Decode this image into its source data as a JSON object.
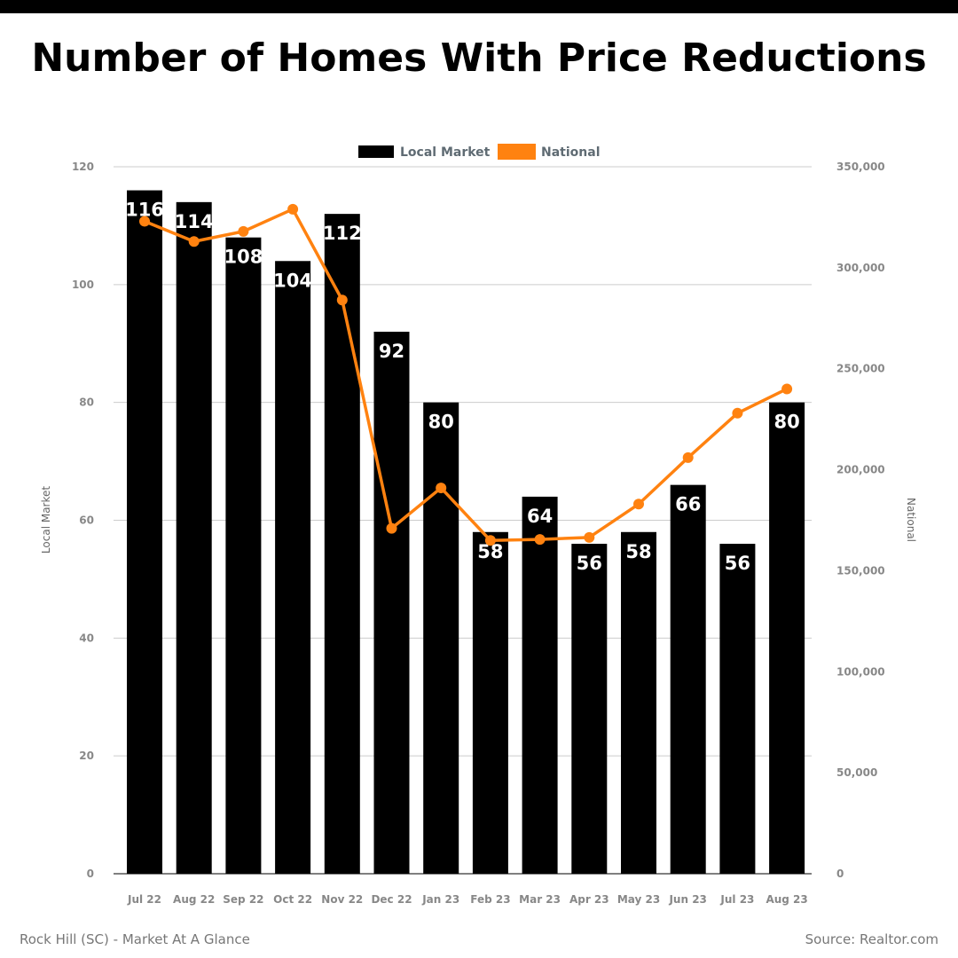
{
  "page": {
    "title": "Number of Homes With Price Reductions",
    "footer_left": "Rock Hill (SC) - Market At A Glance",
    "footer_right": "Source: Realtor.com"
  },
  "colors": {
    "bar": "#000000",
    "line": "#ff8210",
    "grid": "#cccccc",
    "tick": "#888888",
    "legend_text": "#5f6b73"
  },
  "chart_data": {
    "type": "bar",
    "categories": [
      "Jul 22",
      "Aug 22",
      "Sep 22",
      "Oct 22",
      "Nov 22",
      "Dec 22",
      "Jan 23",
      "Feb 23",
      "Mar 23",
      "Apr 23",
      "May 23",
      "Jun 23",
      "Jul 23",
      "Aug 23"
    ],
    "series": [
      {
        "name": "Local Market",
        "type": "bar",
        "axis": "left",
        "values": [
          116,
          114,
          108,
          104,
          112,
          92,
          80,
          58,
          64,
          56,
          58,
          66,
          56,
          80
        ]
      },
      {
        "name": "National",
        "type": "line",
        "axis": "right",
        "values": [
          323000,
          313000,
          318000,
          329000,
          284000,
          171000,
          191000,
          165000,
          165500,
          166500,
          183000,
          206000,
          228000,
          240000
        ]
      }
    ],
    "ylabel_left": "Local Market",
    "ylabel_right": "National",
    "ylim_left": [
      0,
      120
    ],
    "ylim_right": [
      0,
      350000
    ],
    "yticks_left": [
      "0",
      "20",
      "40",
      "60",
      "80",
      "100",
      "120"
    ],
    "yticks_right": [
      "0",
      "50,000",
      "100,000",
      "150,000",
      "200,000",
      "250,000",
      "300,000",
      "350,000"
    ],
    "grid": true,
    "legend_position": "top-center"
  }
}
